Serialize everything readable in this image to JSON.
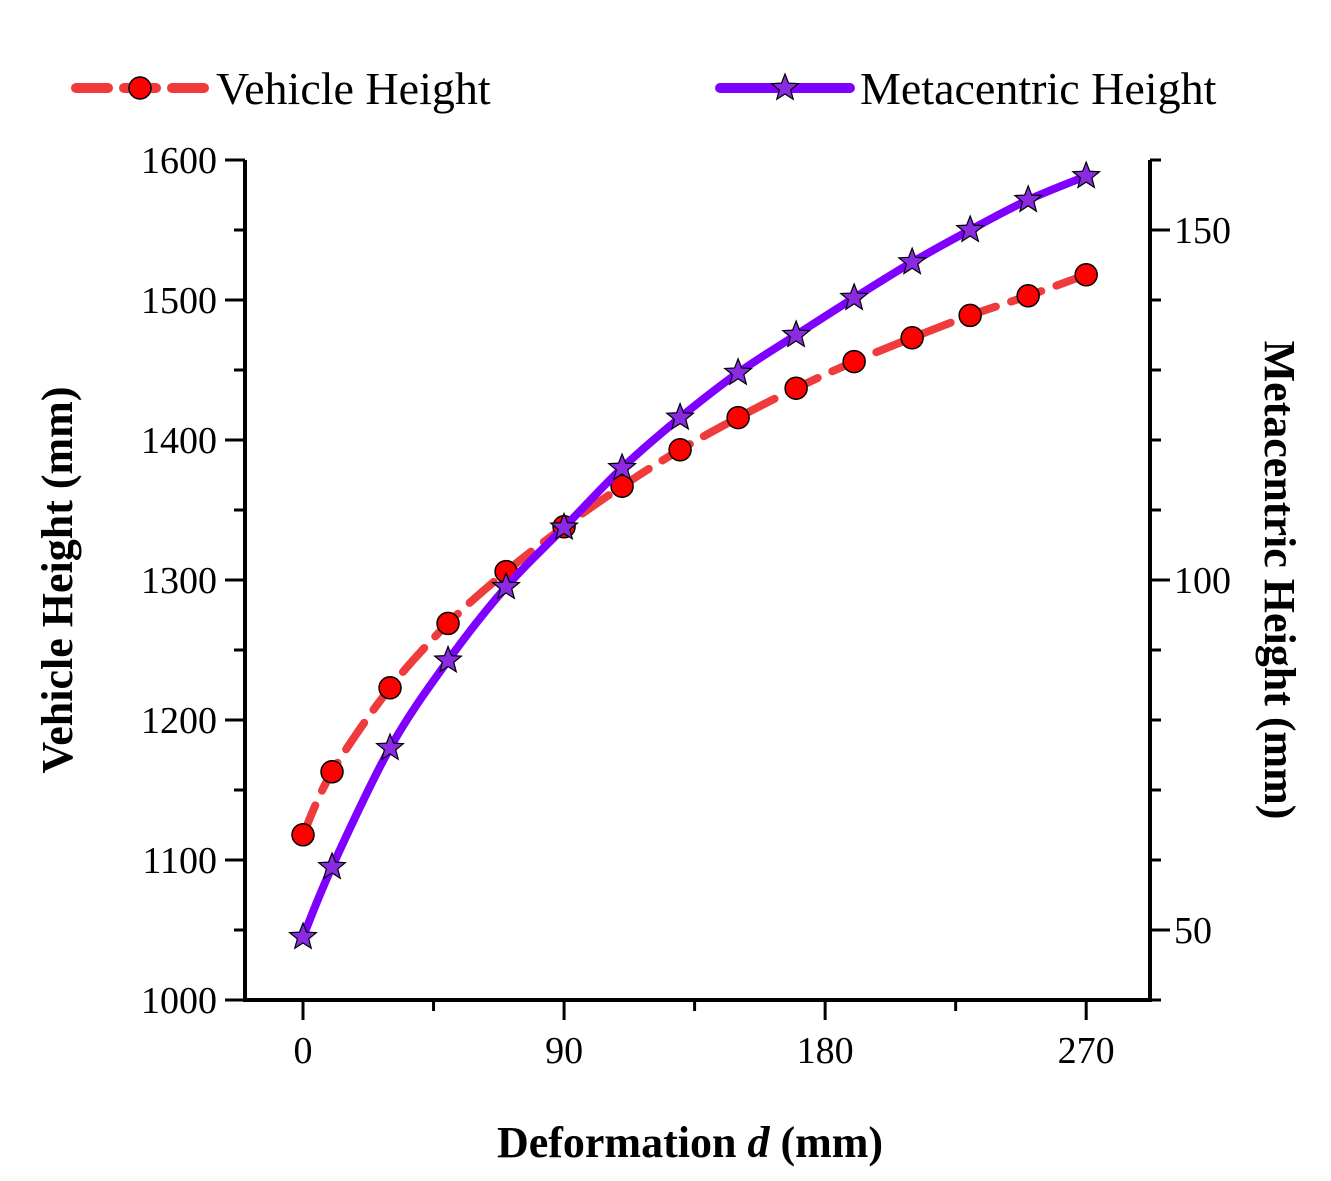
{
  "chart_data": {
    "type": "line",
    "title": "",
    "xlabel": {
      "prefix": "Deformation ",
      "italic": "d",
      "suffix": " (mm)"
    },
    "ylabel": "Vehicle Height (mm)",
    "y2label": "Metacentric Height (mm)",
    "xlim": [
      -20,
      292
    ],
    "ylim": [
      1000,
      1600
    ],
    "y2lim": [
      40,
      160
    ],
    "x_ticks": [
      0,
      90,
      180,
      270
    ],
    "x_tick_labels": [
      "0",
      "90",
      "180",
      "270"
    ],
    "y_ticks": [
      1000,
      1100,
      1200,
      1300,
      1400,
      1500,
      1600
    ],
    "y_tick_labels": [
      "1000",
      "1100",
      "1200",
      "1300",
      "1400",
      "1500",
      "1600"
    ],
    "y2_ticks": [
      50,
      100,
      150
    ],
    "y2_tick_labels": [
      "50",
      "100",
      "150"
    ],
    "legend_position": "top",
    "series": [
      {
        "name": "Vehicle Height",
        "axis": "left",
        "color": "#ef3b3b",
        "marker_color": "#ff0000",
        "marker": "circle",
        "line_style": "dashed",
        "x": [
          0,
          10,
          30,
          50,
          70,
          90,
          110,
          130,
          150,
          170,
          190,
          210,
          230,
          250,
          270
        ],
        "values": [
          1118,
          1163,
          1223,
          1269,
          1306,
          1338,
          1367,
          1393,
          1416,
          1437,
          1456,
          1473,
          1489,
          1503,
          1518
        ]
      },
      {
        "name": "Metacentric Height",
        "axis": "right",
        "color": "#7f00ff",
        "marker_color": "#8a2be2",
        "marker": "star",
        "line_style": "solid",
        "x": [
          0,
          10,
          30,
          50,
          70,
          90,
          110,
          130,
          150,
          170,
          190,
          210,
          230,
          250,
          270
        ],
        "values": [
          49,
          59,
          76,
          88.5,
          99,
          107.5,
          116,
          123.2,
          129.6,
          135,
          140.3,
          145.4,
          150,
          154.3,
          157.7
        ]
      }
    ]
  }
}
